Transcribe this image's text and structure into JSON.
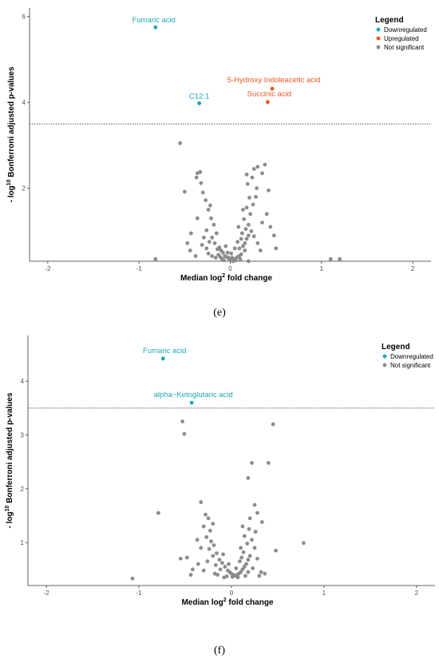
{
  "colors": {
    "down": "#1aa7b5",
    "up": "#f0531f",
    "ns": "#8c8c8c",
    "threshold": "#555555"
  },
  "chart_data": [
    {
      "type": "scatter",
      "panel_label": "(e)",
      "xlabel": "Median log",
      "xlabel_sup": "2",
      "xlabel_tail": " fold change",
      "ylabel_pre": "- log",
      "ylabel_sup": "10",
      "ylabel_tail": " Bonferroni adjusted p-values",
      "xlim": [
        -2.2,
        2.2
      ],
      "ylim": [
        0.3,
        6.2
      ],
      "xticks": [
        -2,
        -1,
        0,
        1,
        2
      ],
      "yticks": [
        2,
        4,
        6
      ],
      "threshold": 3.5,
      "legend": {
        "title": "Legend",
        "placement": "top-right",
        "entries": [
          {
            "label": "Downregulated",
            "group": "down"
          },
          {
            "label": "Upregulated",
            "group": "up"
          },
          {
            "label": "Not significant",
            "group": "ns"
          }
        ]
      },
      "labeled_points": [
        {
          "x": -0.82,
          "y": 5.75,
          "label": "Fumaric acid",
          "group": "down"
        },
        {
          "x": -0.34,
          "y": 3.98,
          "label": "C12:1",
          "group": "down"
        },
        {
          "x": 0.46,
          "y": 4.32,
          "label": "5-Hydroxy Indoleacetic acid",
          "group": "up"
        },
        {
          "x": 0.41,
          "y": 4.01,
          "label": "Succinic acid",
          "group": "up"
        }
      ],
      "ns_points": [
        [
          -0.55,
          3.05
        ],
        [
          -0.82,
          0.35
        ],
        [
          -0.5,
          1.92
        ],
        [
          -0.36,
          1.3
        ],
        [
          -0.43,
          0.95
        ],
        [
          -0.47,
          0.72
        ],
        [
          -0.44,
          0.55
        ],
        [
          -0.36,
          2.35
        ],
        [
          -0.33,
          2.38
        ],
        [
          -0.37,
          2.25
        ],
        [
          -0.32,
          2.12
        ],
        [
          -0.3,
          1.9
        ],
        [
          -0.27,
          1.72
        ],
        [
          -0.24,
          1.5
        ],
        [
          -0.21,
          1.3
        ],
        [
          -0.18,
          1.15
        ],
        [
          -0.15,
          0.95
        ],
        [
          -0.2,
          0.85
        ],
        [
          -0.23,
          0.75
        ],
        [
          -0.17,
          0.72
        ],
        [
          -0.26,
          0.6
        ],
        [
          -0.14,
          0.58
        ],
        [
          -0.1,
          0.55
        ],
        [
          -0.08,
          0.5
        ],
        [
          -0.13,
          0.45
        ],
        [
          -0.06,
          0.42
        ],
        [
          -0.11,
          0.4
        ],
        [
          -0.04,
          0.4
        ],
        [
          -0.02,
          0.38
        ],
        [
          0.0,
          0.36
        ],
        [
          0.02,
          0.38
        ],
        [
          0.04,
          0.35
        ],
        [
          0.06,
          0.36
        ],
        [
          0.08,
          0.4
        ],
        [
          0.1,
          0.42
        ],
        [
          0.12,
          0.46
        ],
        [
          -0.09,
          0.35
        ],
        [
          -0.16,
          0.38
        ],
        [
          -0.2,
          0.42
        ],
        [
          -0.24,
          0.48
        ],
        [
          -0.12,
          0.62
        ],
        [
          -0.05,
          0.65
        ],
        [
          0.05,
          0.6
        ],
        [
          0.1,
          0.6
        ],
        [
          0.14,
          0.65
        ],
        [
          0.16,
          0.72
        ],
        [
          0.18,
          0.82
        ],
        [
          0.2,
          0.9
        ],
        [
          0.13,
          0.95
        ],
        [
          0.17,
          1.05
        ],
        [
          0.2,
          1.15
        ],
        [
          0.15,
          1.28
        ],
        [
          0.22,
          1.4
        ],
        [
          0.18,
          1.55
        ],
        [
          0.25,
          1.62
        ],
        [
          0.28,
          1.8
        ],
        [
          0.21,
          1.78
        ],
        [
          0.29,
          2.0
        ],
        [
          0.19,
          2.1
        ],
        [
          0.24,
          2.25
        ],
        [
          0.18,
          2.32
        ],
        [
          0.26,
          2.45
        ],
        [
          0.35,
          2.35
        ],
        [
          0.42,
          1.95
        ],
        [
          0.3,
          2.5
        ],
        [
          0.38,
          2.55
        ],
        [
          0.4,
          1.4
        ],
        [
          0.44,
          1.1
        ],
        [
          0.48,
          0.9
        ],
        [
          0.5,
          0.6
        ],
        [
          0.3,
          0.72
        ],
        [
          0.26,
          0.88
        ],
        [
          0.33,
          0.55
        ],
        [
          0.12,
          0.82
        ],
        [
          0.08,
          0.75
        ],
        [
          0.16,
          0.55
        ],
        [
          -0.03,
          0.5
        ],
        [
          0.01,
          0.48
        ],
        [
          -0.29,
          0.85
        ],
        [
          -0.31,
          0.68
        ],
        [
          -0.38,
          0.42
        ],
        [
          1.1,
          0.35
        ],
        [
          1.2,
          0.35
        ],
        [
          0.2,
          0.3
        ],
        [
          0.03,
          0.3
        ],
        [
          -0.07,
          0.32
        ],
        [
          -0.01,
          0.33
        ],
        [
          0.06,
          0.32
        ],
        [
          0.11,
          0.34
        ],
        [
          0.23,
          1.0
        ],
        [
          -0.26,
          1.02
        ],
        [
          0.09,
          1.1
        ],
        [
          0.14,
          1.5
        ],
        [
          -0.22,
          1.6
        ],
        [
          0.35,
          1.2
        ]
      ]
    },
    {
      "type": "scatter",
      "panel_label": "(f)",
      "xlabel": "Median log",
      "xlabel_sup": "2",
      "xlabel_tail": " fold change",
      "ylabel_pre": "- log",
      "ylabel_sup": "10",
      "ylabel_tail": " Bonferroni adjusted p-values",
      "xlim": [
        -2.2,
        2.2
      ],
      "ylim": [
        0.2,
        4.85
      ],
      "xticks": [
        -2,
        -1,
        0,
        1,
        2
      ],
      "yticks": [
        1,
        2,
        3,
        4
      ],
      "threshold": 3.5,
      "legend": {
        "title": "Legend",
        "placement": "top-right",
        "entries": [
          {
            "label": "Downregulated",
            "group": "down"
          },
          {
            "label": "Not significant",
            "group": "ns"
          }
        ]
      },
      "labeled_points": [
        {
          "x": -0.74,
          "y": 4.42,
          "label": "Fumaric acid",
          "group": "down"
        },
        {
          "x": -0.43,
          "y": 3.6,
          "label": "alpha−Ketoglutaric acid",
          "group": "down"
        }
      ],
      "ns_points": [
        [
          -0.53,
          3.25
        ],
        [
          -0.51,
          3.02
        ],
        [
          0.45,
          3.2
        ],
        [
          0.4,
          2.48
        ],
        [
          0.22,
          2.48
        ],
        [
          0.18,
          2.2
        ],
        [
          -0.33,
          1.75
        ],
        [
          -0.79,
          1.55
        ],
        [
          -1.07,
          0.33
        ],
        [
          0.78,
          0.99
        ],
        [
          0.48,
          0.85
        ],
        [
          0.25,
          1.7
        ],
        [
          0.28,
          1.55
        ],
        [
          0.33,
          1.38
        ],
        [
          0.2,
          1.45
        ],
        [
          -0.28,
          1.52
        ],
        [
          -0.25,
          1.45
        ],
        [
          -0.3,
          1.3
        ],
        [
          -0.23,
          1.22
        ],
        [
          -0.27,
          1.1
        ],
        [
          -0.22,
          1.02
        ],
        [
          -0.19,
          0.95
        ],
        [
          -0.24,
          0.88
        ],
        [
          -0.16,
          0.8
        ],
        [
          -0.2,
          0.75
        ],
        [
          -0.13,
          0.68
        ],
        [
          -0.1,
          0.62
        ],
        [
          -0.17,
          0.58
        ],
        [
          -0.07,
          0.55
        ],
        [
          -0.12,
          0.5
        ],
        [
          -0.04,
          0.48
        ],
        [
          -0.02,
          0.45
        ],
        [
          0.0,
          0.42
        ],
        [
          0.02,
          0.4
        ],
        [
          0.04,
          0.38
        ],
        [
          0.06,
          0.4
        ],
        [
          0.08,
          0.42
        ],
        [
          0.1,
          0.45
        ],
        [
          0.12,
          0.5
        ],
        [
          0.14,
          0.55
        ],
        [
          0.16,
          0.6
        ],
        [
          0.18,
          0.68
        ],
        [
          0.2,
          0.75
        ],
        [
          0.13,
          0.82
        ],
        [
          0.1,
          0.9
        ],
        [
          0.17,
          0.98
        ],
        [
          0.22,
          1.05
        ],
        [
          0.14,
          1.12
        ],
        [
          0.19,
          1.25
        ],
        [
          0.12,
          1.3
        ],
        [
          -0.08,
          0.35
        ],
        [
          -0.05,
          0.37
        ],
        [
          0.01,
          0.36
        ],
        [
          0.07,
          0.35
        ],
        [
          -0.55,
          0.7
        ],
        [
          -0.48,
          0.72
        ],
        [
          -0.42,
          0.5
        ],
        [
          -0.44,
          0.4
        ],
        [
          -0.36,
          0.6
        ],
        [
          -0.3,
          0.48
        ],
        [
          -0.33,
          0.9
        ],
        [
          -0.37,
          1.05
        ],
        [
          0.25,
          0.9
        ],
        [
          0.28,
          0.7
        ],
        [
          0.32,
          0.45
        ],
        [
          0.36,
          0.42
        ],
        [
          0.3,
          0.38
        ],
        [
          -0.15,
          0.4
        ],
        [
          -0.18,
          0.42
        ],
        [
          0.15,
          0.38
        ],
        [
          0.18,
          0.45
        ],
        [
          0.23,
          0.52
        ],
        [
          -0.26,
          0.65
        ],
        [
          0.05,
          0.52
        ],
        [
          0.09,
          0.65
        ],
        [
          -0.03,
          0.6
        ],
        [
          0.26,
          1.2
        ],
        [
          -0.2,
          1.35
        ],
        [
          0.11,
          0.72
        ],
        [
          -0.09,
          0.78
        ]
      ]
    }
  ]
}
